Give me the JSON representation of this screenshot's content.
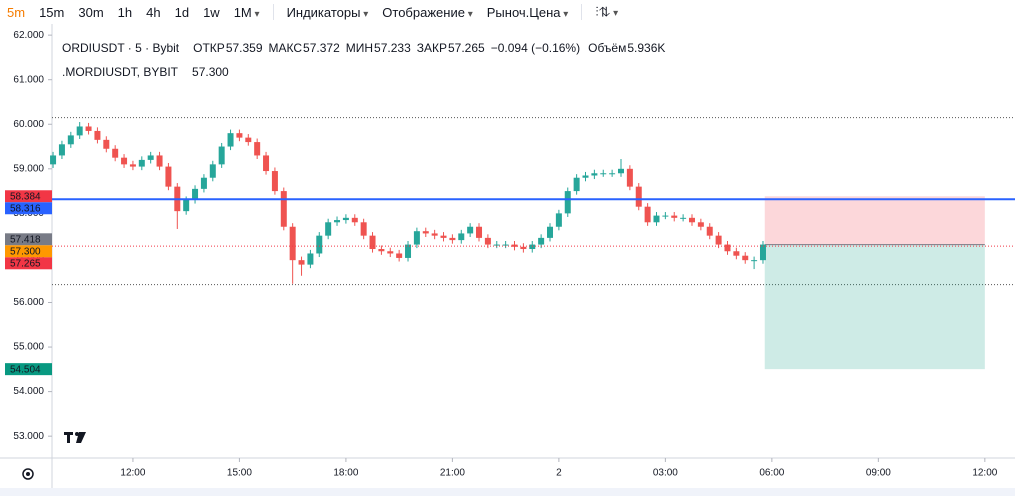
{
  "toolbar": {
    "intervals": [
      "5m",
      "15m",
      "30m",
      "1h",
      "4h",
      "1d",
      "1w",
      "1M"
    ],
    "active": "5m",
    "menus": [
      "Индикаторы",
      "Отображение",
      "Рыноч.Цена"
    ]
  },
  "legend": {
    "symbol": "ORDIUSDT · 5 · Bybit",
    "open_label": "ОТКР",
    "open": "57.359",
    "high_label": "МАКС",
    "high": "57.372",
    "low_label": "МИН",
    "low": "57.233",
    "close_label": "ЗАКР",
    "close": "57.265",
    "change": "−0.094 (−0.16%)",
    "volume_label": "Объём",
    "volume": "5.936K",
    "mark_symbol": ".MORDIUSDT, BYBIT",
    "mark_value": "57.300"
  },
  "chart_data": {
    "type": "candlestick",
    "x": [
      9.75,
      10,
      10.25,
      10.5,
      10.75,
      11,
      11.25,
      11.5,
      11.75,
      12,
      12.25,
      12.5,
      12.75,
      13,
      13.25,
      13.5,
      13.75,
      14,
      14.25,
      14.5,
      14.75,
      15,
      15.25,
      15.5,
      15.75,
      16,
      16.25,
      16.5,
      16.75,
      17,
      17.25,
      17.5,
      17.75,
      18,
      18.25,
      18.5,
      18.75,
      19,
      19.25,
      19.5,
      19.75,
      20,
      20.25,
      20.5,
      20.75,
      21,
      21.25,
      21.5,
      21.75,
      22,
      22.25,
      22.5,
      22.75,
      23,
      23.25,
      23.5,
      23.75,
      24,
      24.25,
      24.5,
      24.75,
      25,
      25.25,
      25.5,
      25.75,
      26,
      26.25,
      26.5,
      26.75,
      27,
      27.25,
      27.5,
      27.75,
      28,
      28.25,
      28.5,
      28.75,
      29,
      29.25,
      29.5,
      29.75
    ],
    "open": [
      59.1,
      59.3,
      59.55,
      59.75,
      59.95,
      59.85,
      59.65,
      59.45,
      59.25,
      59.1,
      59.05,
      59.2,
      59.3,
      59.05,
      58.6,
      58.05,
      58.3,
      58.55,
      58.8,
      59.1,
      59.5,
      59.8,
      59.7,
      59.6,
      59.3,
      58.95,
      58.5,
      57.7,
      56.95,
      56.85,
      57.1,
      57.5,
      57.8,
      57.85,
      57.9,
      57.8,
      57.5,
      57.2,
      57.15,
      57.1,
      57.0,
      57.3,
      57.6,
      57.55,
      57.5,
      57.45,
      57.4,
      57.55,
      57.7,
      57.45,
      57.3,
      57.3,
      57.3,
      57.25,
      57.2,
      57.3,
      57.45,
      57.7,
      58.0,
      58.5,
      58.8,
      58.85,
      58.9,
      58.9,
      58.9,
      59.0,
      58.6,
      58.15,
      57.8,
      57.95,
      57.95,
      57.9,
      57.9,
      57.8,
      57.7,
      57.5,
      57.3,
      57.15,
      57.05,
      56.95,
      56.95
    ],
    "high": [
      59.38,
      59.63,
      59.83,
      60.05,
      60.03,
      59.93,
      59.73,
      59.53,
      59.33,
      59.18,
      59.28,
      59.38,
      59.38,
      59.13,
      58.68,
      58.38,
      58.63,
      58.88,
      59.18,
      59.58,
      59.88,
      59.88,
      59.78,
      59.68,
      59.38,
      59.03,
      58.58,
      57.78,
      57.03,
      57.18,
      57.58,
      57.88,
      57.93,
      57.98,
      57.98,
      57.88,
      57.58,
      57.28,
      57.23,
      57.18,
      57.38,
      57.68,
      57.68,
      57.63,
      57.58,
      57.53,
      57.63,
      57.78,
      57.78,
      57.53,
      57.38,
      57.38,
      57.38,
      57.33,
      57.38,
      57.53,
      57.78,
      58.08,
      58.58,
      58.88,
      58.93,
      58.98,
      58.98,
      58.98,
      59.22,
      59.08,
      58.68,
      58.23,
      58.03,
      58.03,
      58.03,
      57.98,
      57.98,
      57.88,
      57.78,
      57.58,
      57.38,
      57.23,
      57.13,
      57.03,
      57.38
    ],
    "low": [
      59.02,
      59.22,
      59.47,
      59.67,
      59.77,
      59.57,
      59.37,
      59.17,
      59.02,
      58.97,
      58.97,
      59.12,
      58.97,
      58.52,
      57.65,
      57.97,
      58.22,
      58.47,
      58.72,
      59.02,
      59.42,
      59.62,
      59.52,
      59.22,
      58.87,
      58.42,
      57.62,
      56.42,
      56.6,
      56.77,
      57.02,
      57.42,
      57.72,
      57.77,
      57.72,
      57.42,
      57.12,
      57.07,
      57.02,
      56.92,
      56.92,
      57.22,
      57.47,
      57.42,
      57.37,
      57.32,
      57.32,
      57.47,
      57.37,
      57.22,
      57.22,
      57.22,
      57.17,
      57.12,
      57.12,
      57.22,
      57.37,
      57.62,
      57.92,
      58.42,
      58.72,
      58.77,
      58.82,
      58.82,
      58.82,
      58.52,
      58.07,
      57.72,
      57.72,
      57.87,
      57.82,
      57.82,
      57.72,
      57.62,
      57.42,
      57.22,
      57.07,
      56.97,
      56.87,
      56.75,
      56.87
    ],
    "close": [
      59.3,
      59.55,
      59.75,
      59.95,
      59.85,
      59.65,
      59.45,
      59.25,
      59.1,
      59.05,
      59.2,
      59.3,
      59.05,
      58.6,
      58.05,
      58.3,
      58.55,
      58.8,
      59.1,
      59.5,
      59.8,
      59.7,
      59.6,
      59.3,
      58.95,
      58.5,
      57.7,
      56.95,
      56.85,
      57.1,
      57.5,
      57.8,
      57.85,
      57.9,
      57.8,
      57.5,
      57.2,
      57.15,
      57.1,
      57.0,
      57.3,
      57.6,
      57.55,
      57.5,
      57.45,
      57.4,
      57.55,
      57.7,
      57.45,
      57.3,
      57.3,
      57.3,
      57.25,
      57.2,
      57.3,
      57.45,
      57.7,
      58.0,
      58.5,
      58.8,
      58.85,
      58.9,
      58.9,
      58.9,
      59.0,
      58.6,
      58.15,
      57.8,
      57.95,
      57.95,
      57.9,
      57.9,
      57.8,
      57.7,
      57.5,
      57.3,
      57.15,
      57.05,
      56.95,
      56.95,
      57.3
    ],
    "up_color": "#26a69a",
    "down_color": "#ef5350",
    "xlim": [
      9.72,
      36.85
    ],
    "ylim": [
      52.51,
      62.25
    ],
    "xticks": [
      {
        "value": 12,
        "label": "12:00"
      },
      {
        "value": 15,
        "label": "15:00"
      },
      {
        "value": 18,
        "label": "18:00"
      },
      {
        "value": 21,
        "label": "21:00"
      },
      {
        "value": 24,
        "label": "2"
      },
      {
        "value": 27,
        "label": "03:00"
      },
      {
        "value": 30,
        "label": "06:00"
      },
      {
        "value": 33,
        "label": "09:00"
      },
      {
        "value": 36,
        "label": "12:00"
      }
    ],
    "yticks": [
      {
        "value": 53,
        "label": "53.000"
      },
      {
        "value": 54,
        "label": "54.000"
      },
      {
        "value": 55,
        "label": "55.000"
      },
      {
        "value": 56,
        "label": "56.000"
      },
      {
        "value": 57,
        "label": "57.000"
      },
      {
        "value": 58,
        "label": "58.000"
      },
      {
        "value": 59,
        "label": "59.000"
      },
      {
        "value": 60,
        "label": "60.000"
      },
      {
        "value": 61,
        "label": "61.000"
      },
      {
        "value": 62,
        "label": "62.000"
      }
    ],
    "levels": [
      60.15,
      56.4
    ],
    "price_line": {
      "value": 58.316,
      "color": "#2962ff"
    },
    "close_line": {
      "value": 57.265,
      "color": "#f23645"
    },
    "position": {
      "x_start": 29.8,
      "x_end": 36.0,
      "entry": 57.3,
      "stop": 58.384,
      "target": 54.504
    },
    "price_labels": [
      {
        "value": 58.384,
        "label": "58.384",
        "color": "#f23645"
      },
      {
        "value": 58.316,
        "label": "58.316",
        "color": "#2962ff"
      },
      {
        "value": 57.418,
        "label": "57.418",
        "color": "#787b86"
      },
      {
        "value": 57.3,
        "label": "57.300",
        "color": "#ff9800"
      },
      {
        "value": 57.265,
        "label": "57.265",
        "color": "#f23645"
      },
      {
        "value": 54.504,
        "label": "54.504",
        "color": "#089981"
      }
    ]
  }
}
